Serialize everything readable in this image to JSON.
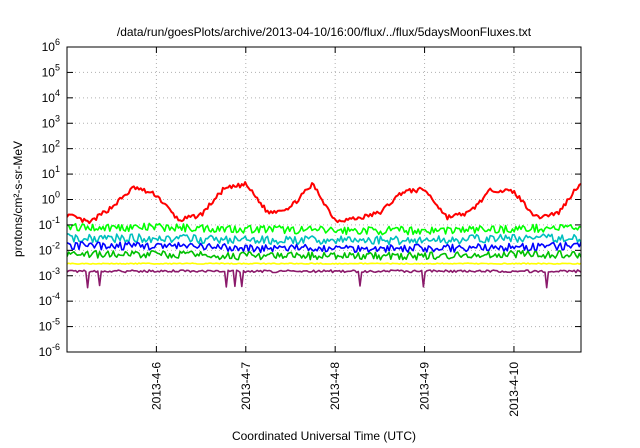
{
  "chart_data": {
    "type": "line",
    "title": "/data/run/goesPlots/archive/2013-04-10/16:00/flux/../flux/5daysMoonFluxes.txt",
    "xlabel": "Coordinated Universal Time (UTC)",
    "ylabel": "protons/cm²-s-sr-MeV",
    "y_scale": "log",
    "ylim": [
      1e-06,
      1000000.0
    ],
    "xlim": [
      "2013-04-05 00:00",
      "2013-04-10 18:00"
    ],
    "grid": true,
    "legend": "none",
    "y_ticks": [
      {
        "value": 1e-06,
        "base": "10",
        "exp": "-6"
      },
      {
        "value": 1e-05,
        "base": "10",
        "exp": "-5"
      },
      {
        "value": 0.0001,
        "base": "10",
        "exp": "-4"
      },
      {
        "value": 0.001,
        "base": "10",
        "exp": "-3"
      },
      {
        "value": 0.01,
        "base": "10",
        "exp": "-2"
      },
      {
        "value": 0.1,
        "base": "10",
        "exp": "-1"
      },
      {
        "value": 1.0,
        "base": "10",
        "exp": "0"
      },
      {
        "value": 10.0,
        "base": "10",
        "exp": "1"
      },
      {
        "value": 100.0,
        "base": "10",
        "exp": "2"
      },
      {
        "value": 1000.0,
        "base": "10",
        "exp": "3"
      },
      {
        "value": 10000.0,
        "base": "10",
        "exp": "4"
      },
      {
        "value": 100000.0,
        "base": "10",
        "exp": "5"
      },
      {
        "value": 1000000.0,
        "base": "10",
        "exp": "6"
      }
    ],
    "x_ticks": [
      {
        "value": "2013-04-06 00:00",
        "label": "2013-4-6"
      },
      {
        "value": "2013-04-07 00:00",
        "label": "2013-4-7"
      },
      {
        "value": "2013-04-08 00:00",
        "label": "2013-4-8"
      },
      {
        "value": "2013-04-09 00:00",
        "label": "2013-4-9"
      },
      {
        "value": "2013-04-10 00:00",
        "label": "2013-4-10"
      }
    ],
    "series": [
      {
        "color": "#ff0000",
        "x": [
          "2013-04-05 00:00",
          "2013-04-05 06:00",
          "2013-04-05 12:00",
          "2013-04-05 18:00",
          "2013-04-06 00:00",
          "2013-04-06 06:00",
          "2013-04-06 12:00",
          "2013-04-06 18:00",
          "2013-04-07 00:00",
          "2013-04-07 06:00",
          "2013-04-07 12:00",
          "2013-04-07 18:00",
          "2013-04-08 00:00",
          "2013-04-08 06:00",
          "2013-04-08 12:00",
          "2013-04-08 18:00",
          "2013-04-09 00:00",
          "2013-04-09 06:00",
          "2013-04-09 12:00",
          "2013-04-09 18:00",
          "2013-04-10 00:00",
          "2013-04-10 06:00",
          "2013-04-10 12:00",
          "2013-04-10 18:00"
        ],
        "y": [
          0.25,
          0.12,
          0.5,
          3.0,
          1.5,
          0.15,
          0.25,
          2.5,
          4.0,
          0.3,
          0.5,
          4.0,
          0.15,
          0.18,
          0.3,
          2.0,
          2.5,
          0.2,
          0.3,
          2.5,
          2.0,
          0.2,
          0.3,
          5.0
        ]
      },
      {
        "color": "#00ff00",
        "x": [
          "2013-04-05 00:00",
          "2013-04-06 00:00",
          "2013-04-07 00:00",
          "2013-04-08 00:00",
          "2013-04-09 00:00",
          "2013-04-10 00:00",
          "2013-04-10 18:00"
        ],
        "y": [
          0.08,
          0.08,
          0.07,
          0.06,
          0.06,
          0.07,
          0.08
        ]
      },
      {
        "color": "#00bfbf",
        "x": [
          "2013-04-05 00:00",
          "2013-04-06 00:00",
          "2013-04-07 00:00",
          "2013-04-08 00:00",
          "2013-04-09 00:00",
          "2013-04-10 00:00",
          "2013-04-10 18:00"
        ],
        "y": [
          0.03,
          0.03,
          0.025,
          0.025,
          0.025,
          0.03,
          0.03
        ]
      },
      {
        "color": "#0000ff",
        "x": [
          "2013-04-05 00:00",
          "2013-04-06 00:00",
          "2013-04-07 00:00",
          "2013-04-08 00:00",
          "2013-04-09 00:00",
          "2013-04-10 00:00",
          "2013-04-10 18:00"
        ],
        "y": [
          0.015,
          0.015,
          0.012,
          0.012,
          0.012,
          0.013,
          0.015
        ]
      },
      {
        "color": "#00c000",
        "x": [
          "2013-04-05 00:00",
          "2013-04-06 00:00",
          "2013-04-07 00:00",
          "2013-04-08 00:00",
          "2013-04-09 00:00",
          "2013-04-10 00:00",
          "2013-04-10 18:00"
        ],
        "y": [
          0.007,
          0.007,
          0.006,
          0.006,
          0.006,
          0.007,
          0.007
        ]
      },
      {
        "color": "#ffff00",
        "x": [
          "2013-04-05 00:00",
          "2013-04-06 00:00",
          "2013-04-07 00:00",
          "2013-04-08 00:00",
          "2013-04-09 00:00",
          "2013-04-10 00:00",
          "2013-04-10 18:00"
        ],
        "y": [
          0.003,
          0.003,
          0.003,
          0.003,
          0.003,
          0.003,
          0.003
        ]
      },
      {
        "color": "#8b1a6b",
        "x": [
          "2013-04-05 00:00",
          "2013-04-06 00:00",
          "2013-04-07 00:00",
          "2013-04-08 00:00",
          "2013-04-09 00:00",
          "2013-04-10 00:00",
          "2013-04-10 18:00"
        ],
        "y": [
          0.0015,
          0.0015,
          0.0015,
          0.0015,
          0.0015,
          0.0015,
          0.0015
        ]
      }
    ]
  }
}
